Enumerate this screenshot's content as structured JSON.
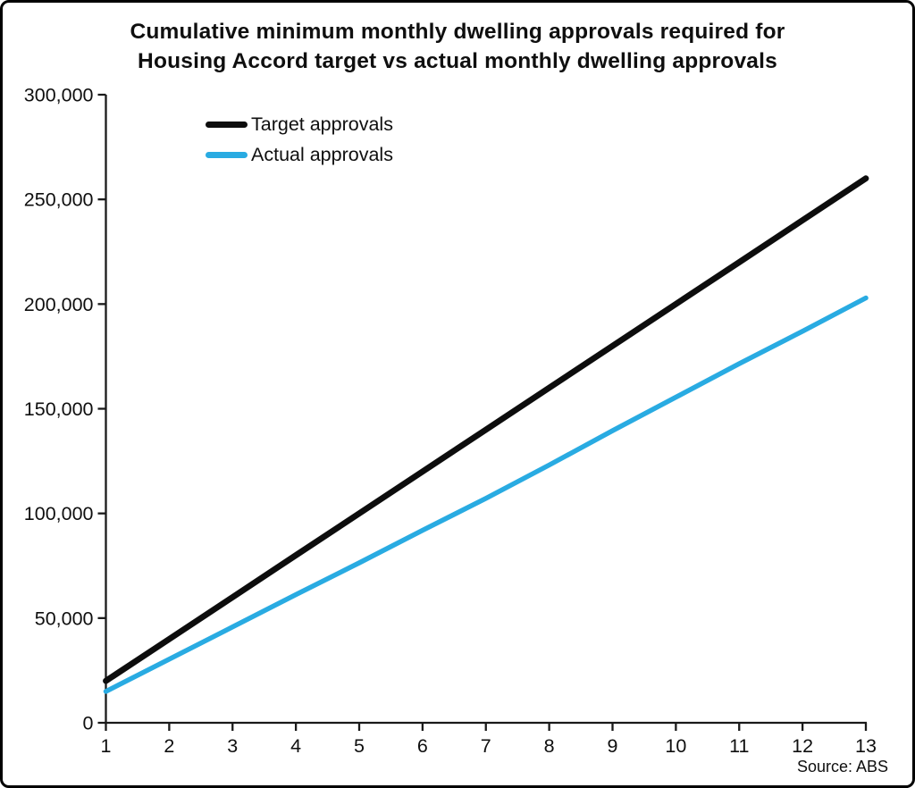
{
  "title": {
    "line1": "Cumulative minimum monthly dwelling approvals required for",
    "line2": "Housing Accord target vs actual monthly dwelling approvals"
  },
  "source_note": "Source: ABS",
  "colors": {
    "target_line": "#0d0d0d",
    "actual_line": "#29abe2",
    "axis": "#1a1a1a",
    "background": "#ffffff",
    "border": "#000000"
  },
  "legend": {
    "entries": [
      {
        "label": "Target approvals",
        "color": "#0d0d0d"
      },
      {
        "label": "Actual approvals",
        "color": "#29abe2"
      }
    ]
  },
  "chart_data": {
    "type": "line",
    "title": "Cumulative minimum monthly dwelling approvals required for Housing Accord target vs actual monthly dwelling approvals",
    "x": [
      1,
      2,
      3,
      4,
      5,
      6,
      7,
      8,
      9,
      10,
      11,
      12,
      13
    ],
    "series": [
      {
        "name": "Target approvals",
        "color": "#0d0d0d",
        "stroke_width": 6.8,
        "values": [
          20000,
          40000,
          60000,
          80000,
          100000,
          120000,
          140000,
          160000,
          180000,
          200000,
          220000,
          240000,
          260000
        ]
      },
      {
        "name": "Actual approvals",
        "color": "#29abe2",
        "stroke_width": 5.5,
        "values": [
          15000,
          30400,
          45800,
          61200,
          76400,
          91900,
          107200,
          123100,
          139500,
          155500,
          171500,
          187000,
          202900
        ]
      }
    ],
    "xlim": [
      1,
      13
    ],
    "ylim": [
      0,
      300000
    ],
    "xtick_values": [
      1,
      2,
      3,
      4,
      5,
      6,
      7,
      8,
      9,
      10,
      11,
      12,
      13
    ],
    "xtick_labels": [
      "1",
      "2",
      "3",
      "4",
      "5",
      "6",
      "7",
      "8",
      "9",
      "10",
      "11",
      "12",
      "13"
    ],
    "ytick_values": [
      0,
      50000,
      100000,
      150000,
      200000,
      250000,
      300000
    ],
    "ytick_labels": [
      "0",
      "50,000",
      "100,000",
      "150,000",
      "200,000",
      "250,000",
      "300,000"
    ],
    "grid": false,
    "legend_position": "top-left",
    "source": "Source: ABS"
  }
}
